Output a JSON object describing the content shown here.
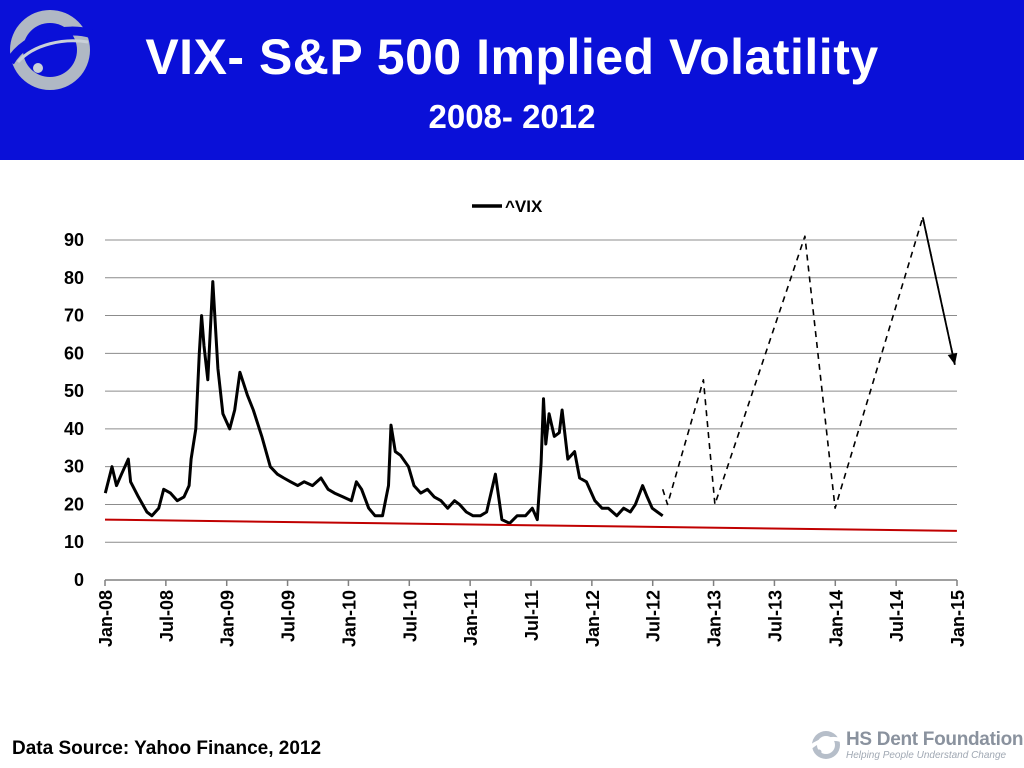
{
  "header": {
    "title": "VIX- S&P 500 Implied Volatility",
    "subtitle": "2008- 2012",
    "background_color": "#0a10d8",
    "logo_icon": "hs-dent-swirl-icon"
  },
  "footer": {
    "source": "Data Source: Yahoo Finance, 2012",
    "brand_name": "HS Dent Foundation",
    "brand_tagline": "Helping People Understand Change",
    "brand_icon": "hs-dent-swirl-icon"
  },
  "chart_data": {
    "type": "line",
    "title": "",
    "xlabel": "",
    "ylabel": "",
    "ylim": [
      0,
      90
    ],
    "yticks": [
      "0",
      "10",
      "20",
      "30",
      "40",
      "50",
      "60",
      "70",
      "80",
      "90"
    ],
    "xlim": [
      "2008-01",
      "2015-01"
    ],
    "xticks": [
      "Jan-08",
      "Jul-08",
      "Jan-09",
      "Jul-09",
      "Jan-10",
      "Jul-10",
      "Jan-11",
      "Jul-11",
      "Jan-12",
      "Jul-12",
      "Jan-13",
      "Jul-13",
      "Jan-14",
      "Jul-14",
      "Jan-15"
    ],
    "grid": true,
    "legend_position": "top-center",
    "series": [
      {
        "name": "^VIX",
        "color": "#000000",
        "style": "solid",
        "x": [
          "2008-01-02",
          "2008-01-22",
          "2008-02-05",
          "2008-02-20",
          "2008-03-10",
          "2008-03-17",
          "2008-04-10",
          "2008-05-05",
          "2008-05-20",
          "2008-06-10",
          "2008-06-25",
          "2008-07-15",
          "2008-08-05",
          "2008-08-25",
          "2008-09-10",
          "2008-09-16",
          "2008-09-30",
          "2008-10-10",
          "2008-10-17",
          "2008-10-24",
          "2008-11-05",
          "2008-11-20",
          "2008-12-05",
          "2008-12-20",
          "2009-01-10",
          "2009-01-25",
          "2009-02-10",
          "2009-03-02",
          "2009-03-20",
          "2009-04-15",
          "2009-05-10",
          "2009-06-01",
          "2009-06-20",
          "2009-07-10",
          "2009-08-01",
          "2009-08-20",
          "2009-09-15",
          "2009-10-10",
          "2009-11-01",
          "2009-11-20",
          "2009-12-15",
          "2010-01-10",
          "2010-01-25",
          "2010-02-10",
          "2010-03-01",
          "2010-03-20",
          "2010-04-12",
          "2010-04-30",
          "2010-05-07",
          "2010-05-20",
          "2010-06-05",
          "2010-06-29",
          "2010-07-15",
          "2010-08-05",
          "2010-08-25",
          "2010-09-15",
          "2010-10-05",
          "2010-10-25",
          "2010-11-15",
          "2010-11-30",
          "2010-12-20",
          "2011-01-10",
          "2011-02-01",
          "2011-02-20",
          "2011-03-16",
          "2011-04-05",
          "2011-04-28",
          "2011-05-20",
          "2011-06-15",
          "2011-07-05",
          "2011-07-20",
          "2011-08-01",
          "2011-08-08",
          "2011-08-15",
          "2011-08-25",
          "2011-09-10",
          "2011-09-25",
          "2011-10-03",
          "2011-10-20",
          "2011-11-10",
          "2011-11-25",
          "2011-12-15",
          "2012-01-10",
          "2012-02-01",
          "2012-02-20",
          "2012-03-15",
          "2012-04-05",
          "2012-04-25",
          "2012-05-10",
          "2012-06-01",
          "2012-06-15",
          "2012-06-30",
          "2012-07-15",
          "2012-07-31"
        ],
        "values": [
          23,
          30,
          25,
          28,
          32,
          26,
          22,
          18,
          17,
          19,
          24,
          23,
          21,
          22,
          25,
          32,
          40,
          60,
          70,
          62,
          53,
          79,
          56,
          44,
          40,
          45,
          55,
          49,
          45,
          38,
          30,
          28,
          27,
          26,
          25,
          26,
          25,
          27,
          24,
          23,
          22,
          21,
          26,
          24,
          19,
          17,
          17,
          25,
          41,
          34,
          33,
          30,
          25,
          23,
          24,
          22,
          21,
          19,
          21,
          20,
          18,
          17,
          17,
          18,
          28,
          16,
          15,
          17,
          17,
          19,
          16,
          31,
          48,
          36,
          44,
          38,
          39,
          45,
          32,
          34,
          27,
          26,
          21,
          19,
          19,
          17,
          19,
          18,
          20,
          25,
          22,
          19,
          18,
          17
        ]
      },
      {
        "name": "",
        "color": "#000000",
        "style": "dashed",
        "x": [
          "2012-07-31",
          "2012-08-15",
          "2012-12-01",
          "2013-01-05",
          "2013-10-01",
          "2013-12-31",
          "2014-09-20",
          "2014-12-25"
        ],
        "values": [
          24,
          20,
          53,
          20,
          91,
          19,
          96,
          57
        ]
      },
      {
        "name": "",
        "color": "#c00000",
        "style": "solid",
        "x": [
          "2008-01-01",
          "2014-12-31"
        ],
        "values": [
          16,
          13
        ]
      }
    ]
  }
}
